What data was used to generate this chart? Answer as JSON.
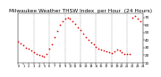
{
  "title": "Milwaukee Weather THSW Index  per Hour  (24 Hours)",
  "title_fontsize": 4.2,
  "background_color": "#ffffff",
  "plot_bg_color": "#ffffff",
  "dot_color": "#dd0000",
  "dot_size": 1.5,
  "ylim": [
    10,
    75
  ],
  "xlim": [
    0,
    24
  ],
  "yticks": [
    10,
    20,
    30,
    40,
    50,
    60,
    70
  ],
  "ytick_labels": [
    "10",
    "20",
    "30",
    "40",
    "50",
    "60",
    "70"
  ],
  "vgrid_color": "#888888",
  "vgrid_positions": [
    0,
    3,
    6,
    9,
    12,
    15,
    18,
    21,
    24
  ],
  "hours": [
    0.0,
    0.5,
    1.0,
    1.5,
    2.0,
    2.5,
    3.0,
    3.5,
    4.0,
    4.5,
    5.0,
    5.5,
    6.0,
    6.5,
    7.0,
    7.5,
    8.0,
    8.5,
    9.0,
    9.5,
    10.0,
    10.5,
    11.0,
    11.5,
    12.0,
    12.5,
    13.0,
    13.5,
    14.0,
    14.5,
    15.0,
    15.5,
    16.0,
    16.5,
    17.0,
    17.5,
    18.0,
    18.5,
    19.0,
    19.5,
    20.0,
    20.5,
    21.0,
    21.5,
    22.0,
    22.5,
    23.0,
    23.5
  ],
  "values": [
    38,
    36,
    33,
    30,
    28,
    26,
    24,
    22,
    20,
    19,
    18,
    22,
    28,
    35,
    44,
    52,
    60,
    65,
    68,
    70,
    68,
    65,
    61,
    57,
    53,
    48,
    44,
    40,
    37,
    34,
    31,
    29,
    27,
    26,
    25,
    24,
    23,
    25,
    27,
    26,
    24,
    22,
    21,
    22,
    70,
    72,
    68,
    65
  ]
}
